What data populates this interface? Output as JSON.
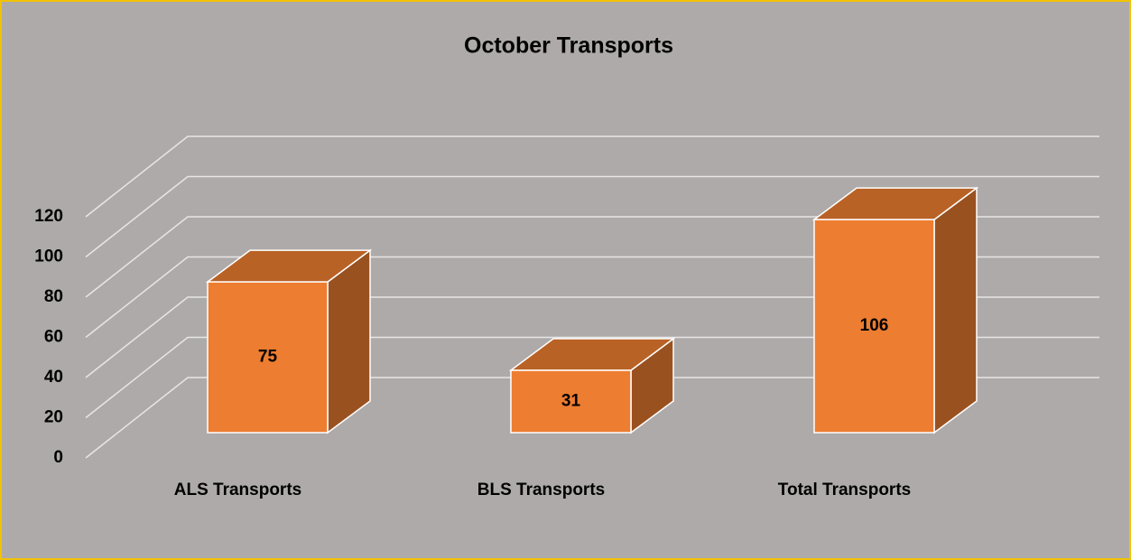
{
  "chart_data": {
    "type": "bar3d",
    "title": "October Transports",
    "categories": [
      "ALS Transports",
      "BLS Transports",
      "Total Transports"
    ],
    "values": [
      75,
      31,
      106
    ],
    "color": "#ed7d31",
    "ylim": [
      0,
      120
    ],
    "yticks": [
      0,
      20,
      40,
      60,
      80,
      100,
      120
    ],
    "grid": true
  }
}
